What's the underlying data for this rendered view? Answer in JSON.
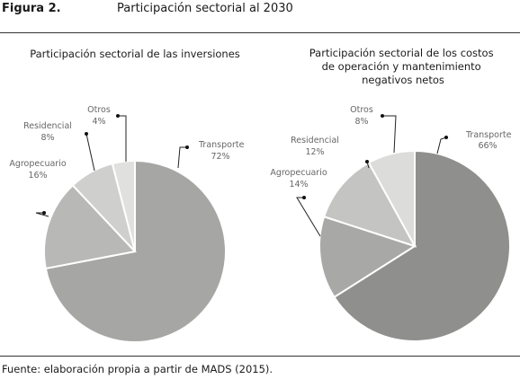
{
  "figure": {
    "label": "Figura 2.",
    "title": "Participación sectorial al 2030",
    "source": "Fuente: elaboración propia a partir de MADS (2015)."
  },
  "chart_data": [
    {
      "type": "pie",
      "title": "Participación sectorial de las inversiones",
      "slices": [
        {
          "name": "Transporte",
          "value": 72,
          "label": "72%",
          "color": "#a6a6a4"
        },
        {
          "name": "Agropecuario",
          "value": 16,
          "label": "16%",
          "color": "#b8b8b6"
        },
        {
          "name": "Residencial",
          "value": 8,
          "label": "8%",
          "color": "#cfcfcd"
        },
        {
          "name": "Otros",
          "value": 4,
          "label": "4%",
          "color": "#e0e0de"
        }
      ]
    },
    {
      "type": "pie",
      "title": "Participación sectorial de los costos de operación y mantenimiento negativos netos",
      "title_lines": [
        "Participación sectorial de los costos",
        "de operación y mantenimiento",
        "negativos netos"
      ],
      "slices": [
        {
          "name": "Transporte",
          "value": 66,
          "label": "66%",
          "color": "#8f8f8d"
        },
        {
          "name": "Agropecuario",
          "value": 14,
          "label": "14%",
          "color": "#a8a8a6"
        },
        {
          "name": "Residencial",
          "value": 12,
          "label": "12%",
          "color": "#c4c4c2"
        },
        {
          "name": "Otros",
          "value": 8,
          "label": "8%",
          "color": "#dcdcda"
        }
      ]
    }
  ]
}
